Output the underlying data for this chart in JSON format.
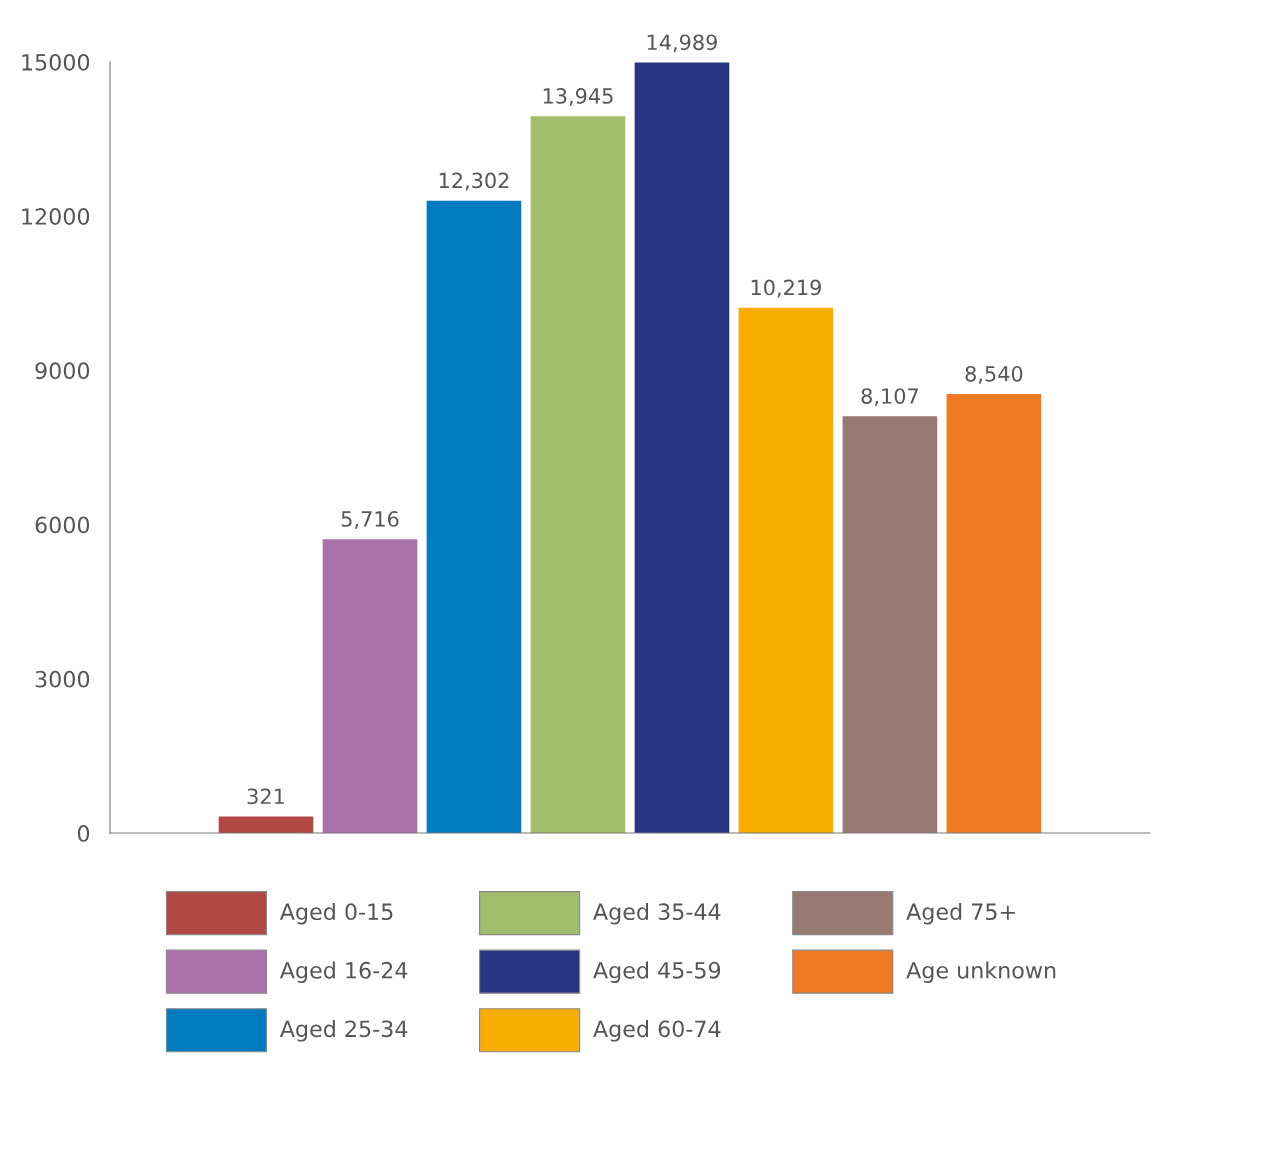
{
  "chart_data": {
    "type": "bar",
    "categories": [
      null,
      null,
      null,
      null,
      null,
      null,
      null,
      null
    ],
    "series": [
      {
        "name": "Aged 0-15",
        "color": "#b04843",
        "values": [
          321,
          null,
          null,
          null,
          null,
          null,
          null,
          null
        ],
        "value_labels": [
          "321",
          null,
          null,
          null,
          null,
          null,
          null,
          null
        ]
      },
      {
        "name": "Aged 16-24",
        "color": "#aa72aa",
        "values": [
          null,
          5716,
          null,
          null,
          null,
          null,
          null,
          null
        ],
        "value_labels": [
          null,
          "5,716",
          null,
          null,
          null,
          null,
          null,
          null
        ]
      },
      {
        "name": "Aged 25-34",
        "color": "#007bc0",
        "values": [
          null,
          null,
          12302,
          null,
          null,
          null,
          null,
          null
        ],
        "value_labels": [
          null,
          null,
          "12,302",
          null,
          null,
          null,
          null,
          null
        ]
      },
      {
        "name": "Aged 35-44",
        "color": "#a2bd6b",
        "values": [
          null,
          null,
          null,
          13945,
          null,
          null,
          null,
          null
        ],
        "value_labels": [
          null,
          null,
          null,
          "13,945",
          null,
          null,
          null,
          null
        ]
      },
      {
        "name": "Aged 45-59",
        "color": "#283583",
        "values": [
          null,
          null,
          null,
          null,
          14989,
          null,
          null,
          null
        ],
        "value_labels": [
          null,
          null,
          null,
          null,
          "14,989",
          null,
          null,
          null
        ]
      },
      {
        "name": "Aged 60-74",
        "color": "#f8ae00",
        "values": [
          null,
          null,
          null,
          null,
          null,
          10219,
          null,
          null
        ],
        "value_labels": [
          null,
          null,
          null,
          null,
          null,
          "10,219",
          null,
          null
        ]
      },
      {
        "name": "Aged 75+",
        "color": "#987972",
        "values": [
          null,
          null,
          null,
          null,
          null,
          null,
          8107,
          null
        ],
        "value_labels": [
          null,
          null,
          null,
          null,
          null,
          null,
          "8,107",
          null
        ]
      },
      {
        "name": "Age unknown",
        "color": "#ee7a21",
        "values": [
          null,
          null,
          null,
          null,
          null,
          null,
          null,
          8540
        ],
        "value_labels": [
          null,
          null,
          null,
          null,
          null,
          null,
          null,
          "8,540"
        ]
      }
    ],
    "ylim": [
      0,
      15000
    ],
    "yticks": [
      0,
      3000,
      6000,
      9000,
      12000,
      15000
    ],
    "grid": false,
    "stacked": true,
    "legend": "bottom"
  }
}
